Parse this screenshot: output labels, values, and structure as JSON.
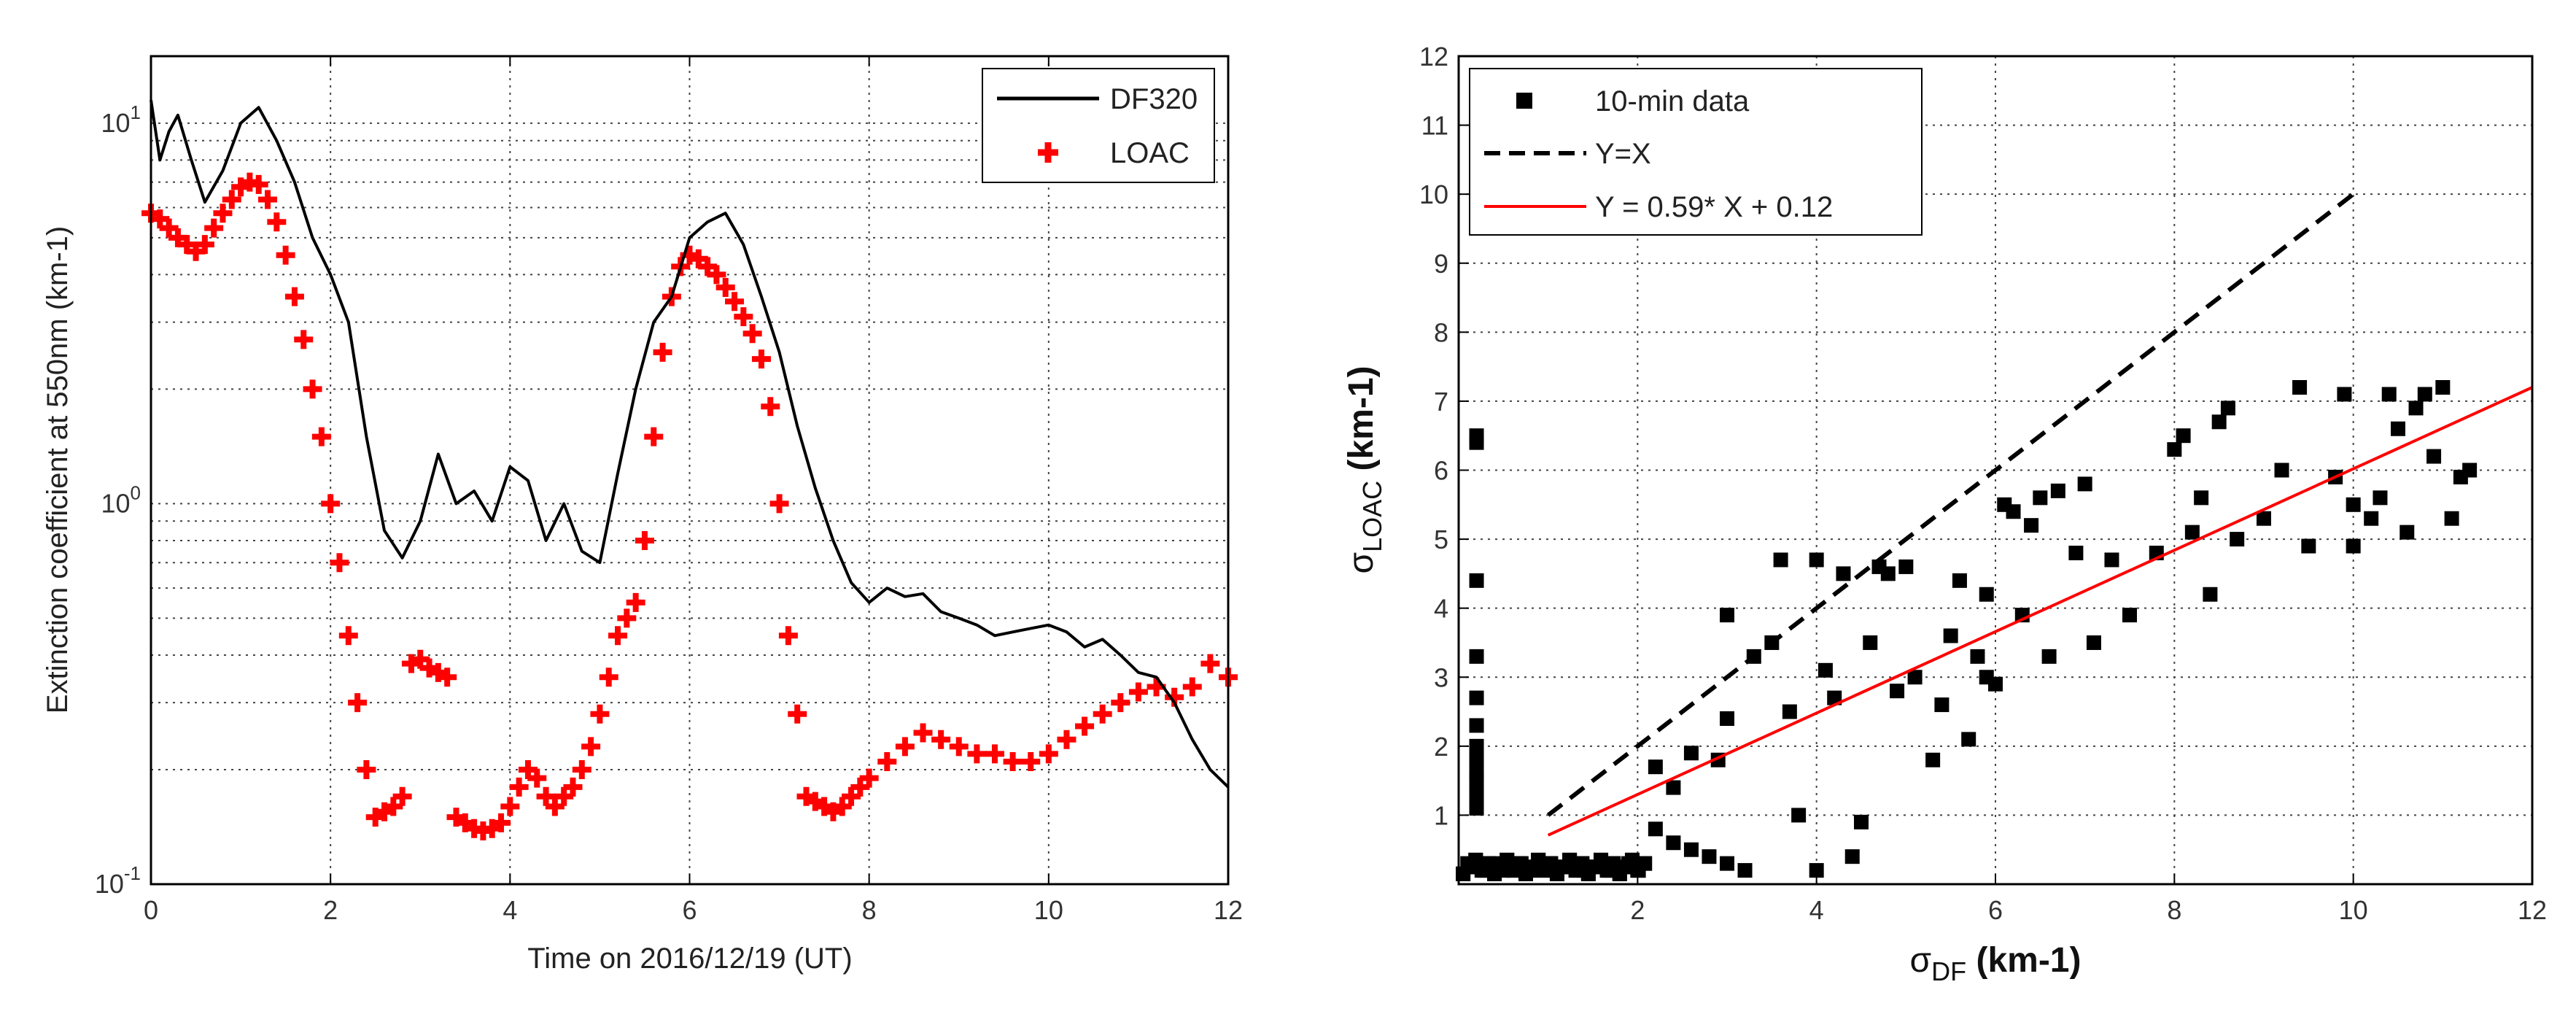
{
  "chart_data": [
    {
      "type": "line",
      "scale": "log-y",
      "xlabel": "Time on 2016/12/19 (UT)",
      "ylabel": "Extinction coefficient at 550nm (km-1)",
      "xlim": [
        0,
        12
      ],
      "ylim": [
        0.1,
        15
      ],
      "x_ticks": [
        "0",
        "2",
        "4",
        "6",
        "8",
        "10",
        "12"
      ],
      "y_ticks": [
        {
          "base": "10",
          "exp": "-1"
        },
        {
          "base": "10",
          "exp": "0"
        },
        {
          "base": "10",
          "exp": "1"
        }
      ],
      "legend": {
        "placement": "top-right",
        "entries": [
          "DF320",
          "LOAC"
        ]
      },
      "series": [
        {
          "name": "DF320",
          "style": "line",
          "color": "#000000",
          "x": [
            0,
            0.1,
            0.2,
            0.3,
            0.45,
            0.6,
            0.8,
            1.0,
            1.2,
            1.4,
            1.6,
            1.8,
            2.0,
            2.2,
            2.4,
            2.6,
            2.8,
            3.0,
            3.2,
            3.4,
            3.6,
            3.8,
            4.0,
            4.2,
            4.4,
            4.6,
            4.8,
            5.0,
            5.2,
            5.4,
            5.6,
            5.8,
            6.0,
            6.2,
            6.4,
            6.6,
            6.8,
            7.0,
            7.2,
            7.4,
            7.6,
            7.8,
            8.0,
            8.2,
            8.4,
            8.6,
            8.8,
            9.0,
            9.2,
            9.4,
            9.6,
            9.8,
            10.0,
            10.2,
            10.4,
            10.6,
            10.8,
            11.0,
            11.2,
            11.4,
            11.6,
            11.8,
            12.0
          ],
          "y": [
            11.5,
            8.0,
            9.5,
            10.5,
            8.0,
            6.2,
            7.5,
            10.0,
            11.0,
            9.0,
            7.0,
            5.0,
            4.0,
            3.0,
            1.5,
            0.85,
            0.72,
            0.9,
            1.35,
            1.0,
            1.08,
            0.9,
            1.25,
            1.15,
            0.8,
            1.0,
            0.75,
            0.7,
            1.2,
            2.0,
            3.0,
            3.5,
            5.0,
            5.5,
            5.8,
            4.8,
            3.5,
            2.5,
            1.6,
            1.1,
            0.8,
            0.62,
            0.55,
            0.6,
            0.57,
            0.58,
            0.52,
            0.5,
            0.48,
            0.45,
            0.46,
            0.47,
            0.48,
            0.46,
            0.42,
            0.44,
            0.4,
            0.36,
            0.35,
            0.3,
            0.24,
            0.2,
            0.18
          ]
        },
        {
          "name": "LOAC",
          "style": "markers",
          "marker": "+",
          "color": "#ff0000",
          "x": [
            0,
            0.1,
            0.2,
            0.3,
            0.4,
            0.5,
            0.6,
            0.7,
            0.8,
            0.9,
            1.0,
            1.1,
            1.2,
            1.3,
            1.4,
            1.5,
            1.6,
            1.7,
            1.8,
            1.9,
            2.0,
            2.1,
            2.2,
            2.3,
            2.4,
            2.5,
            2.6,
            2.7,
            2.8,
            2.9,
            3.0,
            3.1,
            3.2,
            3.3,
            3.4,
            3.5,
            3.6,
            3.7,
            3.8,
            3.9,
            4.0,
            4.1,
            4.2,
            4.3,
            4.4,
            4.5,
            4.6,
            4.7,
            4.8,
            4.9,
            5.0,
            5.1,
            5.2,
            5.3,
            5.4,
            5.5,
            5.6,
            5.7,
            5.8,
            5.9,
            6.0,
            6.1,
            6.2,
            6.3,
            6.4,
            6.5,
            6.6,
            6.7,
            6.8,
            6.9,
            7.0,
            7.1,
            7.2,
            7.3,
            7.4,
            7.5,
            7.6,
            7.7,
            7.8,
            7.9,
            8.0,
            8.2,
            8.4,
            8.6,
            8.8,
            9.0,
            9.2,
            9.4,
            9.6,
            9.8,
            10.0,
            10.2,
            10.4,
            10.6,
            10.8,
            11.0,
            11.2,
            11.4,
            11.6,
            11.8,
            12.0
          ],
          "y": [
            5.8,
            5.6,
            5.3,
            5.0,
            4.8,
            4.6,
            4.8,
            5.3,
            5.8,
            6.3,
            6.8,
            7.0,
            6.9,
            6.3,
            5.5,
            4.5,
            3.5,
            2.7,
            2.0,
            1.5,
            1.0,
            0.7,
            0.45,
            0.3,
            0.2,
            0.15,
            0.155,
            0.16,
            0.17,
            0.38,
            0.39,
            0.37,
            0.36,
            0.35,
            0.15,
            0.145,
            0.14,
            0.138,
            0.14,
            0.145,
            0.16,
            0.18,
            0.2,
            0.19,
            0.17,
            0.16,
            0.17,
            0.18,
            0.2,
            0.23,
            0.28,
            0.35,
            0.45,
            0.5,
            0.55,
            0.8,
            1.5,
            2.5,
            3.5,
            4.2,
            4.5,
            4.4,
            4.2,
            4.0,
            3.7,
            3.4,
            3.1,
            2.8,
            2.4,
            1.8,
            1.0,
            0.45,
            0.28,
            0.17,
            0.165,
            0.16,
            0.155,
            0.16,
            0.17,
            0.18,
            0.19,
            0.21,
            0.23,
            0.25,
            0.24,
            0.23,
            0.22,
            0.22,
            0.21,
            0.21,
            0.22,
            0.24,
            0.26,
            0.28,
            0.3,
            0.32,
            0.33,
            0.31,
            0.33,
            0.38,
            0.35
          ]
        }
      ]
    },
    {
      "type": "scatter",
      "xlabel": "σDF (km-1)",
      "ylabel": "σLOAC (km-1)",
      "xlabel_parts": {
        "sigma": "σ",
        "sub": "DF",
        "unit": " (km-1)"
      },
      "ylabel_parts": {
        "sigma": "σ",
        "sub": "LOAC",
        "unit": " (km-1)"
      },
      "xlim": [
        0,
        12
      ],
      "ylim": [
        0,
        12
      ],
      "x_ticks": [
        "2",
        "4",
        "6",
        "8",
        "10",
        "12"
      ],
      "y_ticks": [
        "1",
        "2",
        "3",
        "4",
        "5",
        "6",
        "7",
        "8",
        "9",
        "10",
        "11",
        "12"
      ],
      "legend": {
        "placement": "top-left",
        "entries": [
          "10-min data",
          "Y=X",
          "Y = 0.59* X + 0.12"
        ]
      },
      "series": [
        {
          "name": "10-min data",
          "style": "markers",
          "marker": "square",
          "color": "#000000",
          "points": [
            [
              0.2,
              6.5
            ],
            [
              0.2,
              6.4
            ],
            [
              0.2,
              4.4
            ],
            [
              0.2,
              3.3
            ],
            [
              0.2,
              2.7
            ],
            [
              0.2,
              2.3
            ],
            [
              0.2,
              2.0
            ],
            [
              0.2,
              1.8
            ],
            [
              0.2,
              1.6
            ],
            [
              0.2,
              1.5
            ],
            [
              0.2,
              1.3
            ],
            [
              0.2,
              1.1
            ],
            [
              0.1,
              0.3
            ],
            [
              0.2,
              0.25
            ],
            [
              0.3,
              0.2
            ],
            [
              0.4,
              0.3
            ],
            [
              0.5,
              0.2
            ],
            [
              0.6,
              0.25
            ],
            [
              0.7,
              0.3
            ],
            [
              0.8,
              0.2
            ],
            [
              0.9,
              0.25
            ],
            [
              1.0,
              0.3
            ],
            [
              1.1,
              0.2
            ],
            [
              1.2,
              0.25
            ],
            [
              1.3,
              0.3
            ],
            [
              1.4,
              0.2
            ],
            [
              1.5,
              0.25
            ],
            [
              1.6,
              0.3
            ],
            [
              1.7,
              0.2
            ],
            [
              1.8,
              0.25
            ],
            [
              1.9,
              0.3
            ],
            [
              2.0,
              0.2
            ],
            [
              2.2,
              0.8
            ],
            [
              2.4,
              0.6
            ],
            [
              2.6,
              0.5
            ],
            [
              2.8,
              0.4
            ],
            [
              3.0,
              0.3
            ],
            [
              3.2,
              0.2
            ],
            [
              2.2,
              1.7
            ],
            [
              2.4,
              1.4
            ],
            [
              2.6,
              1.9
            ],
            [
              2.9,
              1.8
            ],
            [
              3.0,
              2.4
            ],
            [
              3.0,
              3.9
            ],
            [
              3.3,
              3.3
            ],
            [
              3.5,
              3.5
            ],
            [
              3.6,
              4.7
            ],
            [
              3.7,
              2.5
            ],
            [
              3.8,
              1.0
            ],
            [
              4.0,
              0.2
            ],
            [
              4.0,
              4.7
            ],
            [
              4.1,
              3.1
            ],
            [
              4.2,
              2.7
            ],
            [
              4.3,
              4.5
            ],
            [
              4.4,
              0.4
            ],
            [
              4.5,
              0.9
            ],
            [
              4.6,
              3.5
            ],
            [
              4.7,
              4.6
            ],
            [
              4.8,
              4.5
            ],
            [
              5.0,
              4.6
            ],
            [
              4.9,
              2.8
            ],
            [
              5.1,
              3.0
            ],
            [
              5.3,
              1.8
            ],
            [
              5.4,
              2.6
            ],
            [
              5.5,
              3.6
            ],
            [
              5.6,
              4.4
            ],
            [
              5.7,
              2.1
            ],
            [
              5.8,
              3.3
            ],
            [
              5.9,
              3.0
            ],
            [
              5.9,
              4.2
            ],
            [
              6.0,
              2.9
            ],
            [
              6.1,
              5.5
            ],
            [
              6.2,
              5.4
            ],
            [
              6.3,
              3.9
            ],
            [
              6.4,
              5.2
            ],
            [
              6.5,
              5.6
            ],
            [
              6.6,
              3.3
            ],
            [
              6.7,
              5.7
            ],
            [
              6.9,
              4.8
            ],
            [
              7.0,
              5.8
            ],
            [
              7.1,
              3.5
            ],
            [
              7.3,
              4.7
            ],
            [
              7.5,
              3.9
            ],
            [
              7.8,
              4.8
            ],
            [
              8.0,
              6.3
            ],
            [
              8.1,
              6.5
            ],
            [
              8.2,
              5.1
            ],
            [
              8.3,
              5.6
            ],
            [
              8.4,
              4.2
            ],
            [
              8.5,
              6.7
            ],
            [
              8.6,
              6.9
            ],
            [
              8.7,
              5.0
            ],
            [
              9.0,
              5.3
            ],
            [
              9.2,
              6.0
            ],
            [
              9.4,
              7.2
            ],
            [
              9.5,
              4.9
            ],
            [
              9.8,
              5.9
            ],
            [
              9.9,
              7.1
            ],
            [
              10.0,
              5.5
            ],
            [
              10.0,
              4.9
            ],
            [
              10.2,
              5.3
            ],
            [
              10.3,
              5.6
            ],
            [
              10.4,
              7.1
            ],
            [
              10.5,
              6.6
            ],
            [
              10.6,
              5.1
            ],
            [
              10.7,
              6.9
            ],
            [
              10.8,
              7.1
            ],
            [
              10.9,
              6.2
            ],
            [
              11.0,
              7.2
            ],
            [
              11.1,
              5.3
            ],
            [
              11.2,
              5.9
            ],
            [
              11.3,
              6.0
            ]
          ]
        },
        {
          "name": "Y=X",
          "style": "dashed-line",
          "color": "#000000",
          "x": [
            1,
            10
          ],
          "y": [
            1,
            10
          ]
        },
        {
          "name": "Y = 0.59* X + 0.12",
          "style": "line",
          "color": "#ff0000",
          "slope": 0.59,
          "intercept": 0.12,
          "x": [
            1,
            12
          ],
          "y": [
            0.71,
            7.2
          ]
        }
      ]
    }
  ]
}
